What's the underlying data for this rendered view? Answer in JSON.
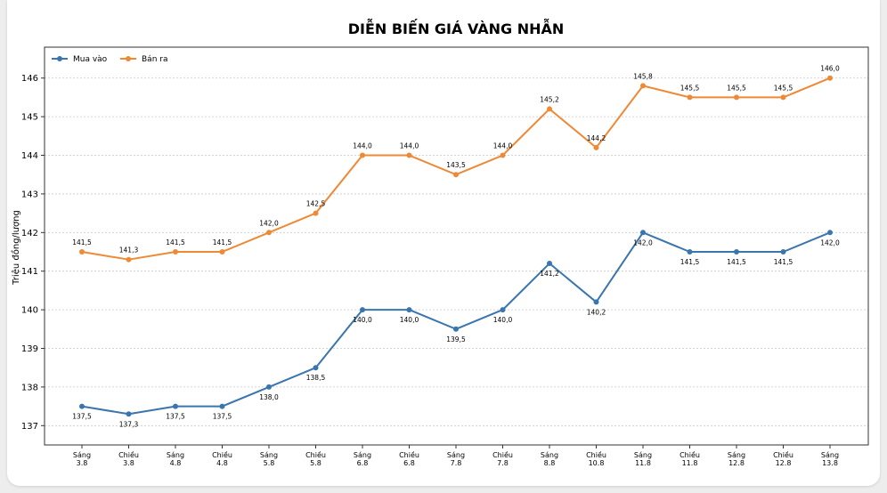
{
  "chart_data": {
    "type": "line",
    "title": "DIỄN BIẾN GIÁ VÀNG NHẪN",
    "xlabel": "",
    "ylabel": "Triệu đồng/lượng",
    "ylim": [
      136.5,
      146.8
    ],
    "yticks": [
      "137",
      "138",
      "139",
      "140",
      "141",
      "142",
      "143",
      "144",
      "145",
      "146"
    ],
    "grid": true,
    "legend_position": "top-left",
    "categories": [
      [
        "Sáng",
        "3.8"
      ],
      [
        "Chiều",
        "3.8"
      ],
      [
        "Sáng",
        "4.8"
      ],
      [
        "Chiều",
        "4.8"
      ],
      [
        "Sáng",
        "5.8"
      ],
      [
        "Chiều",
        "5.8"
      ],
      [
        "Sáng",
        "6.8"
      ],
      [
        "Chiều",
        "6.8"
      ],
      [
        "Sáng",
        "7.8"
      ],
      [
        "Chiều",
        "7.8"
      ],
      [
        "Sáng",
        "8.8"
      ],
      [
        "Chiều",
        "10.8"
      ],
      [
        "Sáng",
        "11.8"
      ],
      [
        "Chiều",
        "11.8"
      ],
      [
        "Sáng",
        "12.8"
      ],
      [
        "Chiều",
        "12.8"
      ],
      [
        "Sáng",
        "13.8"
      ]
    ],
    "series": [
      {
        "name": "Mua vào",
        "color": "#3a75ad",
        "label_position": "below",
        "values": [
          137.5,
          137.3,
          137.5,
          137.5,
          138.0,
          138.5,
          140.0,
          140.0,
          139.5,
          140.0,
          141.2,
          140.2,
          142.0,
          141.5,
          141.5,
          141.5,
          142.0
        ],
        "labels": [
          "137,5",
          "137,3",
          "137,5",
          "137,5",
          "138,0",
          "138,5",
          "140,0",
          "140,0",
          "139,5",
          "140,0",
          "141,2",
          "140,2",
          "142,0",
          "141,5",
          "141,5",
          "141,5",
          "142,0"
        ]
      },
      {
        "name": "Bán ra",
        "color": "#ee8936",
        "label_position": "above",
        "values": [
          141.5,
          141.3,
          141.5,
          141.5,
          142.0,
          142.5,
          144.0,
          144.0,
          143.5,
          144.0,
          145.2,
          144.2,
          145.8,
          145.5,
          145.5,
          145.5,
          146.0
        ],
        "labels": [
          "141,5",
          "141,3",
          "141,5",
          "141,5",
          "142,0",
          "142,5",
          "144,0",
          "144,0",
          "143,5",
          "144,0",
          "145,2",
          "144,2",
          "145,8",
          "145,5",
          "145,5",
          "145,5",
          "146,0"
        ]
      }
    ]
  }
}
